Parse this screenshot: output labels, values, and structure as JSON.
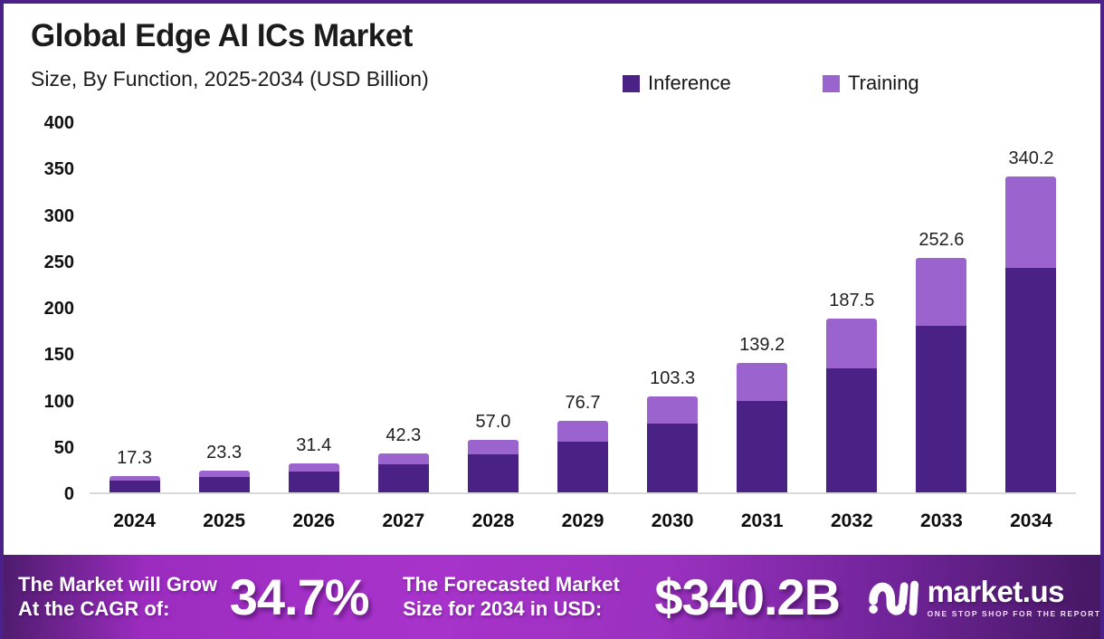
{
  "page": {
    "title": "Global Edge AI ICs Market",
    "subtitle": "Size, By Function, 2025-2034 (USD Billion)"
  },
  "legend": [
    {
      "label": "Inference",
      "color": "#4a2184"
    },
    {
      "label": "Training",
      "color": "#9a63ce"
    }
  ],
  "chart_data": {
    "type": "bar",
    "stacked": true,
    "title": "Global Edge AI ICs Market Size, By Function, 2025-2034 (USD Billion)",
    "categories": [
      "2024",
      "2025",
      "2026",
      "2027",
      "2028",
      "2029",
      "2030",
      "2031",
      "2032",
      "2033",
      "2034"
    ],
    "series": [
      {
        "name": "Inference",
        "color": "#4a2184",
        "values": [
          12.3,
          16.5,
          22.3,
          30.0,
          41.0,
          54.2,
          74.3,
          98.2,
          134.0,
          179.6,
          242.0
        ]
      },
      {
        "name": "Training",
        "color": "#9a63ce",
        "values": [
          5.0,
          6.8,
          9.1,
          12.3,
          16.0,
          22.5,
          29.0,
          41.0,
          53.5,
          73.0,
          98.2
        ]
      }
    ],
    "totals": [
      17.3,
      23.3,
      31.4,
      42.3,
      57.0,
      76.7,
      103.3,
      139.2,
      187.5,
      252.6,
      340.2
    ],
    "total_labels": [
      "17.3",
      "23.3",
      "31.4",
      "42.3",
      "57.0",
      "76.7",
      "103.3",
      "139.2",
      "187.5",
      "252.6",
      "340.2"
    ],
    "xlabel": "",
    "ylabel": "",
    "ylim": [
      0,
      400
    ],
    "y_ticks": [
      "0",
      "50",
      "100",
      "150",
      "200",
      "250",
      "300",
      "350",
      "400"
    ],
    "grid": false,
    "legend_position": "top-right"
  },
  "footer": {
    "cagr_label_line1": "The Market will Grow",
    "cagr_label_line2": "At the CAGR of:",
    "cagr_value": "34.7%",
    "forecast_label_line1": "The Forecasted Market",
    "forecast_label_line2": "Size for 2034 in USD:",
    "forecast_value": "$340.2B",
    "brand": {
      "icon": "market-us-monogram-icon",
      "name": "market.us",
      "tagline": "ONE STOP SHOP FOR THE REPORTS"
    }
  },
  "colors": {
    "border": "#4b2088",
    "inference": "#4a2184",
    "training": "#9a63ce",
    "baseline": "#d9d9d9",
    "banner_bright": "#a833cb",
    "banner_dark": "#441861"
  }
}
